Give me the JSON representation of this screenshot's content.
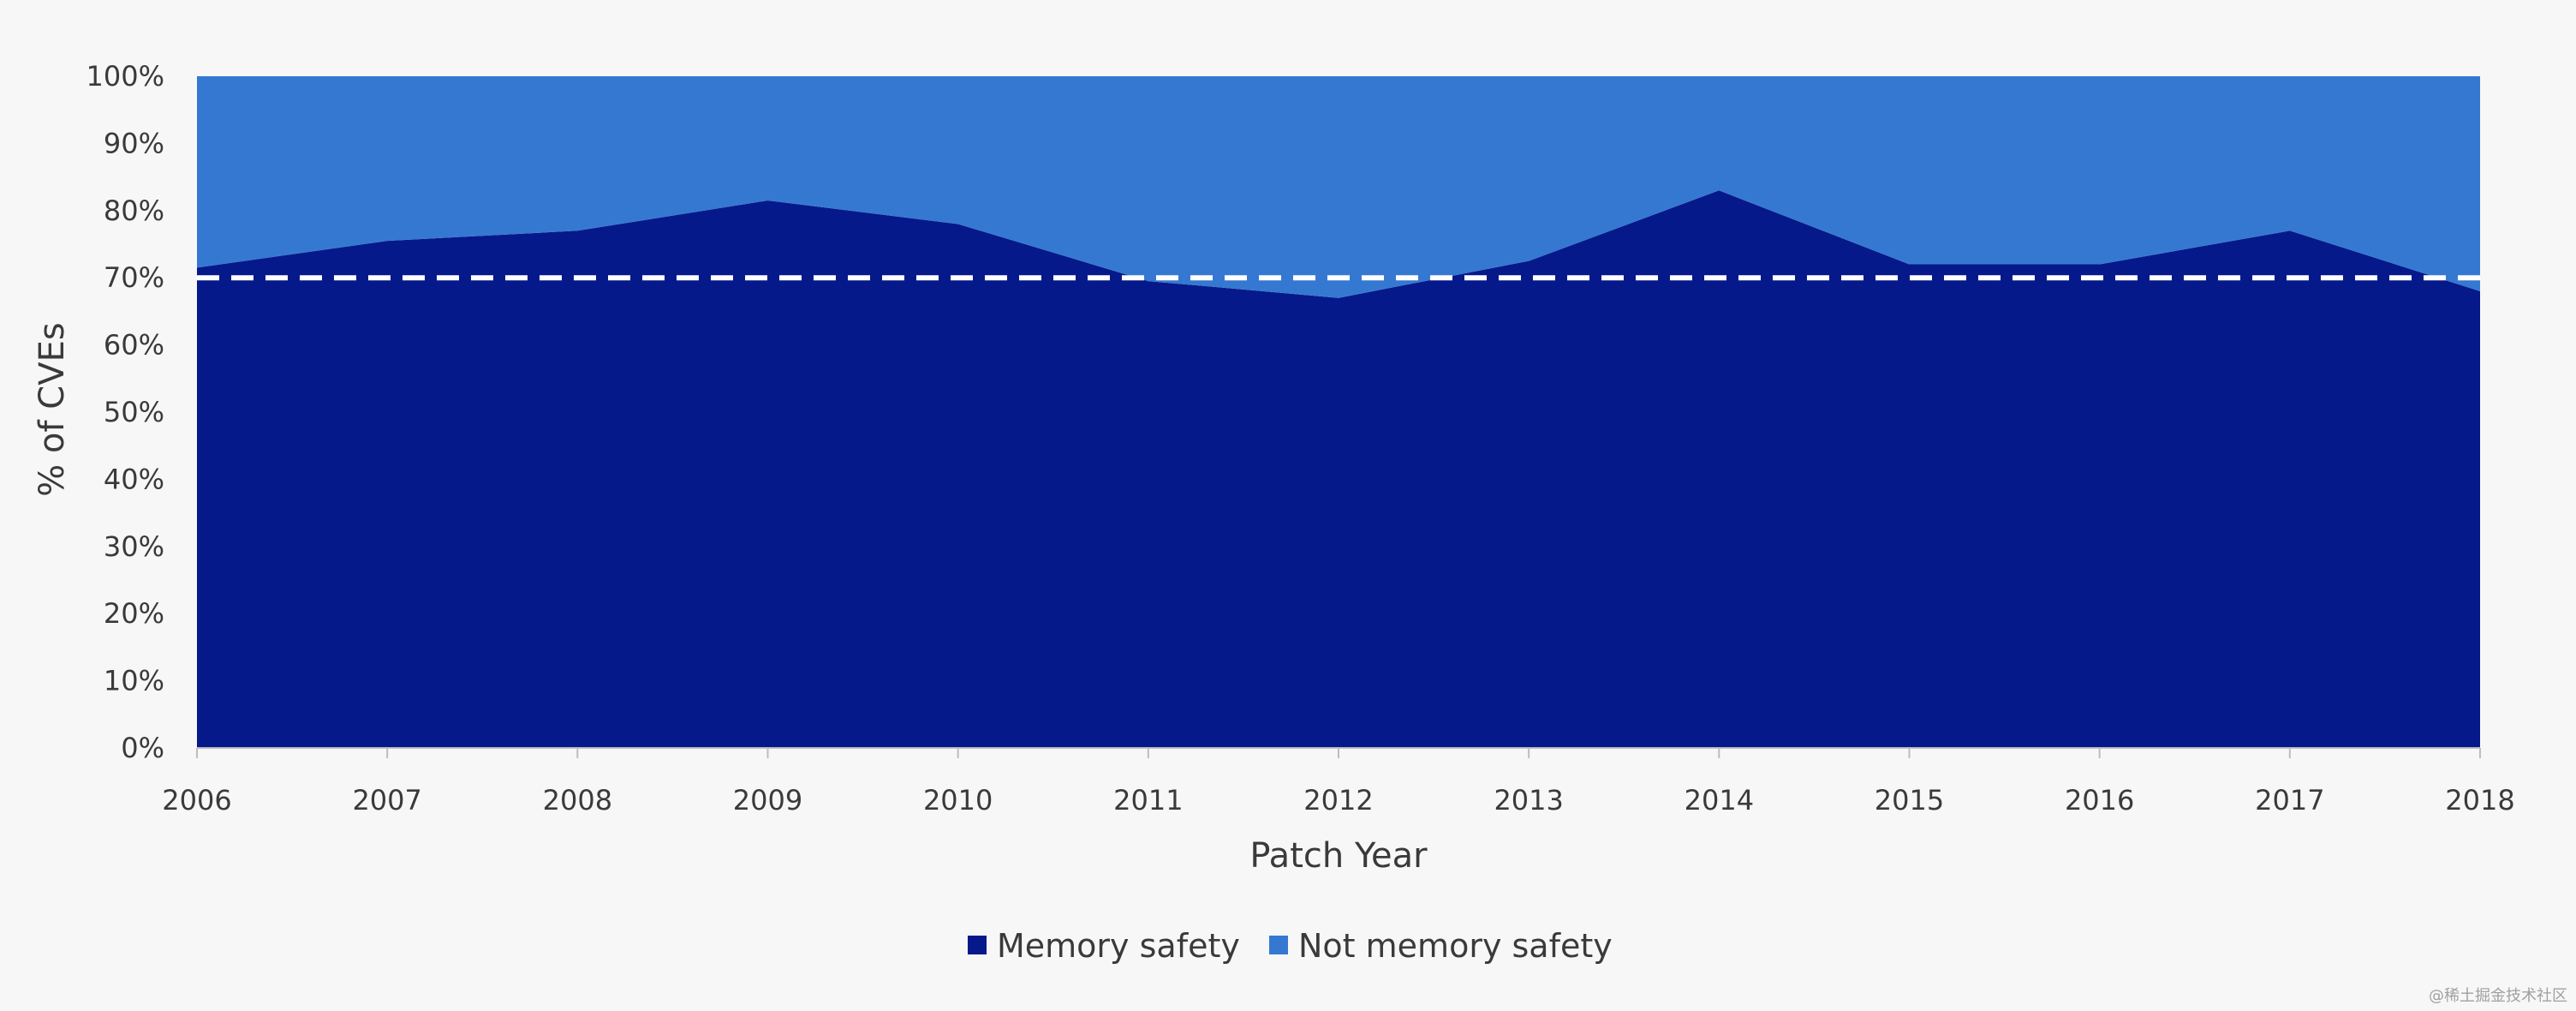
{
  "chart_data": {
    "type": "area",
    "stacked": true,
    "x": [
      "2006",
      "2007",
      "2008",
      "2009",
      "2010",
      "2011",
      "2012",
      "2013",
      "2014",
      "2015",
      "2016",
      "2017",
      "2018"
    ],
    "series": [
      {
        "name": "Memory safety",
        "values": [
          71.5,
          75.5,
          77,
          81.5,
          78,
          69.5,
          67,
          72.5,
          83,
          72,
          72,
          77,
          68
        ],
        "color": "#06198a"
      },
      {
        "name": "Not memory safety",
        "values": [
          28.5,
          24.5,
          23,
          18.5,
          22,
          30.5,
          33,
          27.5,
          17,
          28,
          28,
          23,
          32
        ],
        "color": "#3578d2"
      }
    ],
    "reference_line": {
      "value": 70,
      "style": "dashed",
      "color": "#ffffff"
    },
    "ylim": [
      0,
      100
    ],
    "yticks": [
      "0%",
      "10%",
      "20%",
      "30%",
      "40%",
      "50%",
      "60%",
      "70%",
      "80%",
      "90%",
      "100%"
    ],
    "xlabel": "Patch Year",
    "ylabel": "% of CVEs",
    "legend": {
      "position": "bottom"
    },
    "grid": false
  },
  "watermark": "@稀土掘金技术社区"
}
